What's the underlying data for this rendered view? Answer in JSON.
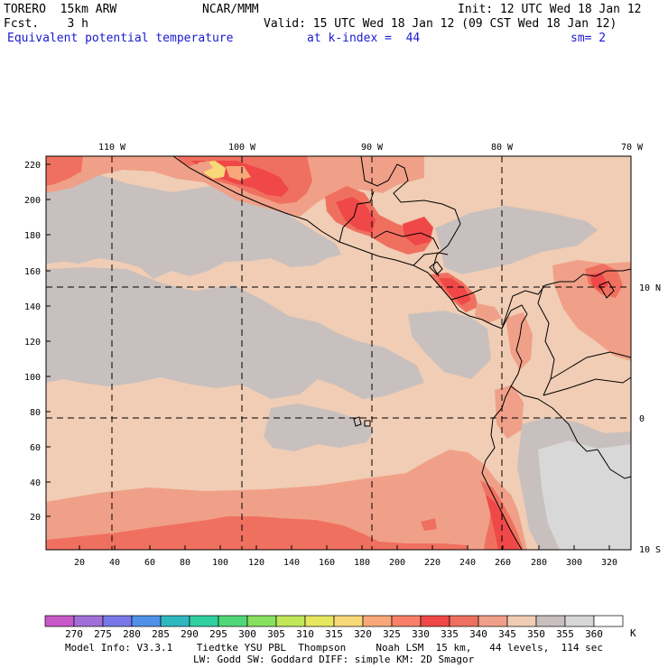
{
  "header": {
    "model": "TORERO  15km ARW",
    "org": "NCAR/MMM",
    "init": "Init: 12 UTC Wed 18 Jan 12",
    "fcst": "Fcst.    3 h",
    "valid": "Valid: 15 UTC Wed 18 Jan 12 (09 CST Wed 18 Jan 12)",
    "field": "Equivalent potential temperature",
    "level": "at k-index =  44",
    "smooth": "sm= 2"
  },
  "axes": {
    "lon_labels": [
      "110 W",
      "100 W",
      "90 W",
      "80 W",
      "70 W"
    ],
    "lat_labels": [
      "10 N",
      "0",
      "10 S"
    ],
    "y_ticks": [
      "20",
      "40",
      "60",
      "80",
      "100",
      "120",
      "140",
      "160",
      "180",
      "200",
      "220"
    ],
    "x_ticks": [
      "20",
      "40",
      "60",
      "80",
      "100",
      "120",
      "140",
      "160",
      "180",
      "200",
      "220",
      "240",
      "260",
      "280",
      "300",
      "320"
    ]
  },
  "colorbar": {
    "unit": "K",
    "labels": [
      "270",
      "275",
      "280",
      "285",
      "290",
      "295",
      "300",
      "305",
      "310",
      "315",
      "320",
      "325",
      "330",
      "335",
      "340",
      "345",
      "350",
      "355",
      "360"
    ],
    "colors": [
      "#c858c8",
      "#a070d8",
      "#7878e8",
      "#5090e8",
      "#30b8c0",
      "#30d0a0",
      "#50d878",
      "#88e060",
      "#c0e858",
      "#e8e860",
      "#f8d878",
      "#f8a878",
      "#f88068",
      "#f04848",
      "#f07060",
      "#f0a088",
      "#f0cdb4",
      "#c8c0be",
      "#d8d8d8",
      "#ffffff"
    ]
  },
  "colors": {
    "land_outline": "#000000",
    "grid_dash": "#000000"
  },
  "footer": {
    "line1": "Model Info: V3.3.1    Tiedtke YSU PBL  Thompson     Noah LSM  15 km,   44 levels,  114 sec",
    "line2": "LW: Godd SW: Goddard DIFF: simple KM: 2D Smagor"
  }
}
